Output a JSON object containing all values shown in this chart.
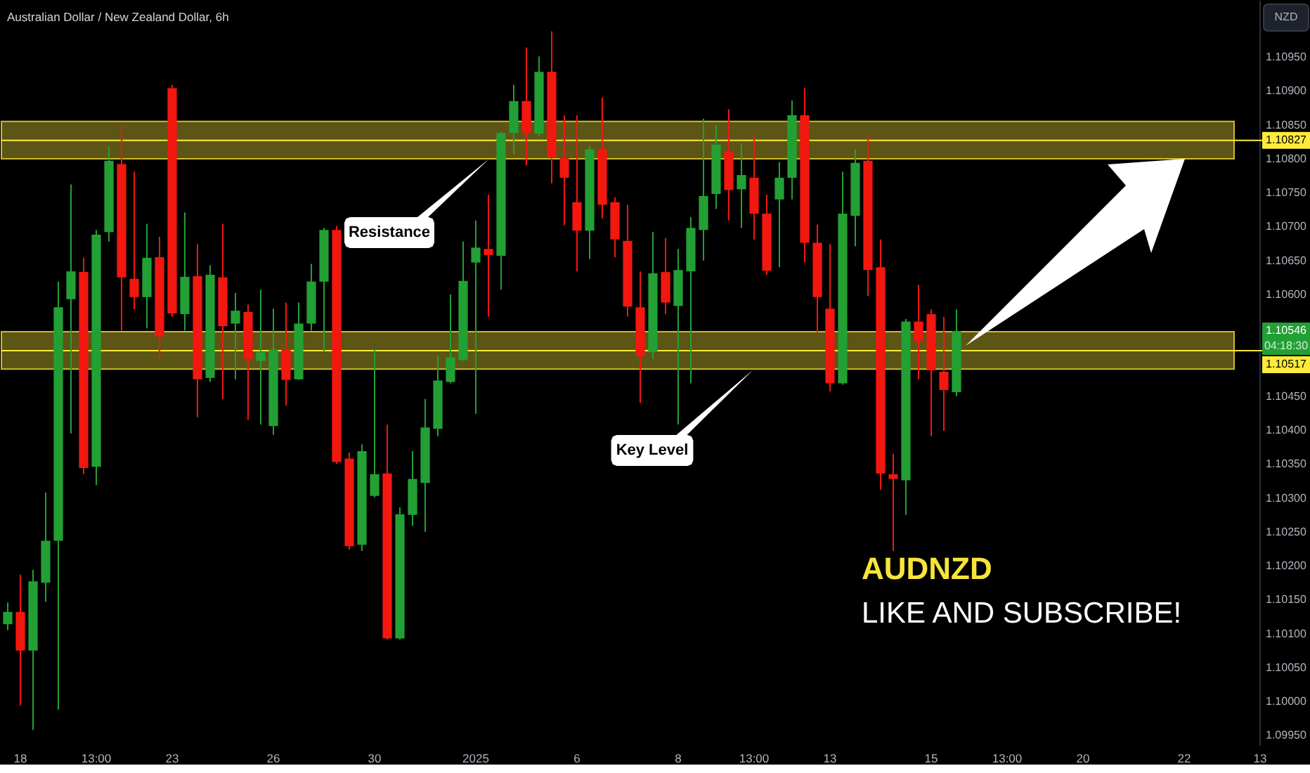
{
  "chart_data": {
    "type": "candlestick",
    "title": "Australian Dollar / New Zealand Dollar, 6h",
    "ylabel": "NZD",
    "categories": [
      null,
      "18",
      null,
      null,
      null,
      null,
      null,
      "13:00",
      null,
      null,
      null,
      null,
      null,
      "23",
      null,
      null,
      null,
      null,
      null,
      null,
      null,
      "26",
      null,
      null,
      null,
      null,
      null,
      null,
      null,
      "30",
      null,
      null,
      null,
      null,
      null,
      null,
      null,
      "2025",
      null,
      null,
      null,
      null,
      null,
      null,
      null,
      "6",
      null,
      null,
      null,
      null,
      null,
      null,
      null,
      "8",
      null,
      null,
      null,
      null,
      null,
      "13:00",
      null,
      null,
      null,
      null,
      null,
      "13",
      null,
      null,
      null,
      null,
      null,
      null,
      null,
      "15",
      null,
      null,
      null,
      null,
      null,
      "13:00",
      null,
      null,
      null,
      null,
      null,
      "20",
      null,
      null,
      null,
      null,
      null,
      null,
      null,
      "22",
      null,
      null,
      null,
      null,
      null,
      "13"
    ],
    "ohlc": [
      [
        1.10114,
        1.10146,
        1.10105,
        1.10132
      ],
      [
        1.10132,
        1.10187,
        1.09994,
        1.10075
      ],
      [
        1.10075,
        1.10194,
        1.09958,
        1.10177
      ],
      [
        1.10175,
        1.10308,
        1.10147,
        1.10237
      ],
      [
        1.10237,
        1.10619,
        1.09988,
        1.10581
      ],
      [
        1.10593,
        1.10762,
        1.10395,
        1.10634
      ],
      [
        1.10633,
        1.10654,
        1.10335,
        1.10344
      ],
      [
        1.10346,
        1.10695,
        1.10319,
        1.10688
      ],
      [
        1.10692,
        1.10818,
        1.10678,
        1.10797
      ],
      [
        1.10792,
        1.1085,
        1.10547,
        1.10625
      ],
      [
        1.10623,
        1.10781,
        1.10578,
        1.10596
      ],
      [
        1.10596,
        1.10704,
        1.1055,
        1.10654
      ],
      [
        1.10655,
        1.10685,
        1.10505,
        1.10538
      ],
      [
        1.10904,
        1.10909,
        1.10567,
        1.10572
      ],
      [
        1.10571,
        1.10721,
        1.10547,
        1.10626
      ],
      [
        1.10627,
        1.10674,
        1.10419,
        1.10475
      ],
      [
        1.10477,
        1.10643,
        1.10471,
        1.10629
      ],
      [
        1.10625,
        1.10704,
        1.10446,
        1.10553
      ],
      [
        1.10557,
        1.10602,
        1.10475,
        1.10576
      ],
      [
        1.10574,
        1.10585,
        1.10415,
        1.10505
      ],
      [
        1.10502,
        1.10607,
        1.10408,
        1.10515
      ],
      [
        1.10406,
        1.10579,
        1.10393,
        1.10519
      ],
      [
        1.10519,
        1.10588,
        1.10436,
        1.10474
      ],
      [
        1.10475,
        1.10588,
        1.10474,
        1.10557
      ],
      [
        1.10557,
        1.10645,
        1.10547,
        1.10619
      ],
      [
        1.10619,
        1.10698,
        1.10515,
        1.10695
      ],
      [
        1.10695,
        1.10701,
        1.1035,
        1.10353
      ],
      [
        1.10358,
        1.10367,
        1.10224,
        1.10229
      ],
      [
        1.10231,
        1.10379,
        1.10222,
        1.10369
      ],
      [
        1.10303,
        1.10519,
        1.10301,
        1.10335
      ],
      [
        1.10336,
        1.10408,
        1.10091,
        1.10093
      ],
      [
        1.10093,
        1.10286,
        1.10091,
        1.10276
      ],
      [
        1.10275,
        1.10369,
        1.10259,
        1.10328
      ],
      [
        1.10322,
        1.10446,
        1.1025,
        1.10404
      ],
      [
        1.10402,
        1.1051,
        1.10391,
        1.10473
      ],
      [
        1.10471,
        1.106,
        1.10469,
        1.10507
      ],
      [
        1.10503,
        1.10678,
        1.10502,
        1.1062
      ],
      [
        1.10647,
        1.10709,
        1.10424,
        1.10669
      ],
      [
        1.10667,
        1.10747,
        1.10567,
        1.10658
      ],
      [
        1.10657,
        1.1084,
        1.10607,
        1.10838
      ],
      [
        1.10838,
        1.10909,
        1.10806,
        1.10885
      ],
      [
        1.10885,
        1.10964,
        1.1079,
        1.10838
      ],
      [
        1.10837,
        1.10951,
        1.10833,
        1.10928
      ],
      [
        1.10928,
        1.10988,
        1.10764,
        1.10802
      ],
      [
        1.10801,
        1.10864,
        1.10702,
        1.10772
      ],
      [
        1.10736,
        1.10864,
        1.10634,
        1.10694
      ],
      [
        1.10694,
        1.10819,
        1.10652,
        1.10814
      ],
      [
        1.10814,
        1.1089,
        1.10712,
        1.10732
      ],
      [
        1.10736,
        1.10743,
        1.10655,
        1.10681
      ],
      [
        1.10679,
        1.10732,
        1.10567,
        1.10582
      ],
      [
        1.10581,
        1.10634,
        1.1044,
        1.10509
      ],
      [
        1.10515,
        1.10692,
        1.10505,
        1.10631
      ],
      [
        1.10633,
        1.10683,
        1.10571,
        1.10588
      ],
      [
        1.10583,
        1.10667,
        1.10408,
        1.10636
      ],
      [
        1.10634,
        1.10714,
        1.10469,
        1.10698
      ],
      [
        1.10695,
        1.10859,
        1.1065,
        1.10745
      ],
      [
        1.10748,
        1.1085,
        1.10726,
        1.10821
      ],
      [
        1.10811,
        1.10873,
        1.10709,
        1.10754
      ],
      [
        1.10755,
        1.10823,
        1.10698,
        1.10776
      ],
      [
        1.10772,
        1.10833,
        1.10681,
        1.10719
      ],
      [
        1.10719,
        1.10747,
        1.10629,
        1.10635
      ],
      [
        1.1074,
        1.10795,
        1.1064,
        1.10772
      ],
      [
        1.10772,
        1.10886,
        1.1074,
        1.10864
      ],
      [
        1.10864,
        1.10904,
        1.10647,
        1.10676
      ],
      [
        1.10676,
        1.10703,
        1.10543,
        1.10596
      ],
      [
        1.10579,
        1.10674,
        1.10457,
        1.10469
      ],
      [
        1.10469,
        1.10781,
        1.10467,
        1.10719
      ],
      [
        1.10716,
        1.10814,
        1.10671,
        1.10794
      ],
      [
        1.10797,
        1.10833,
        1.10598,
        1.10636
      ],
      [
        1.1064,
        1.10681,
        1.10312,
        1.10336
      ],
      [
        1.10335,
        1.10365,
        1.10222,
        1.10328
      ],
      [
        1.10326,
        1.10564,
        1.10275,
        1.1056
      ],
      [
        1.1056,
        1.10614,
        1.10475,
        1.10531
      ],
      [
        1.10571,
        1.10578,
        1.10391,
        1.10488
      ],
      [
        1.10486,
        1.10567,
        1.10399,
        1.10459
      ],
      [
        1.10456,
        1.10578,
        1.1045,
        1.10546
      ],
      null,
      null,
      null,
      null,
      null,
      null,
      null,
      null,
      null,
      null,
      null,
      null,
      null,
      null,
      null,
      null,
      null,
      null,
      null,
      null,
      null,
      null,
      null,
      null
    ],
    "colors": [
      "#22a034",
      "#f2170f",
      "#22a034",
      "#22a034",
      "#22a034",
      "#22a034",
      "#f2170f",
      "#22a034",
      "#22a034",
      "#f2170f",
      "#f2170f",
      "#22a034",
      "#f2170f",
      "#f2170f",
      "#22a034",
      "#f2170f",
      "#22a034",
      "#f2170f",
      "#22a034",
      "#f2170f",
      "#22a034",
      "#22a034",
      "#f2170f",
      "#22a034",
      "#22a034",
      "#22a034",
      "#f2170f",
      "#f2170f",
      "#22a034",
      "#22a034",
      "#f2170f",
      "#22a034",
      "#22a034",
      "#22a034",
      "#22a034",
      "#22a034",
      "#22a034",
      "#22a034",
      "#f2170f",
      "#22a034",
      "#22a034",
      "#f2170f",
      "#22a034",
      "#f2170f",
      "#f2170f",
      "#f2170f",
      "#22a034",
      "#f2170f",
      "#f2170f",
      "#f2170f",
      "#f2170f",
      "#22a034",
      "#f2170f",
      "#22a034",
      "#22a034",
      "#22a034",
      "#22a034",
      "#f2170f",
      "#22a034",
      "#f2170f",
      "#f2170f",
      "#22a034",
      "#22a034",
      "#f2170f",
      "#f2170f",
      "#f2170f",
      "#22a034",
      "#22a034",
      "#f2170f",
      "#f2170f",
      "#f2170f",
      "#22a034",
      "#f2170f",
      "#f2170f",
      "#f2170f",
      "#22a034",
      null,
      null,
      null,
      null,
      null,
      null,
      null,
      null,
      null,
      null,
      null,
      null,
      null,
      null,
      null,
      null,
      null,
      null,
      null,
      null,
      null,
      null,
      null,
      null
    ],
    "ylim": [
      1.09936,
      1.11034
    ],
    "yticks": [
      {
        "value": 1.0995,
        "label": "1.09950"
      },
      {
        "value": 1.1,
        "label": "1.10000"
      },
      {
        "value": 1.1005,
        "label": "1.10050"
      },
      {
        "value": 1.101,
        "label": "1.10100"
      },
      {
        "value": 1.1015,
        "label": "1.10150"
      },
      {
        "value": 1.102,
        "label": "1.10200"
      },
      {
        "value": 1.1025,
        "label": "1.10250"
      },
      {
        "value": 1.103,
        "label": "1.10300"
      },
      {
        "value": 1.1035,
        "label": "1.10350"
      },
      {
        "value": 1.104,
        "label": "1.10400"
      },
      {
        "value": 1.1045,
        "label": "1.10450"
      },
      {
        "value": 1.106,
        "label": "1.10600"
      },
      {
        "value": 1.1065,
        "label": "1.10650"
      },
      {
        "value": 1.107,
        "label": "1.10700"
      },
      {
        "value": 1.1075,
        "label": "1.10750"
      },
      {
        "value": 1.108,
        "label": "1.10800"
      },
      {
        "value": 1.1085,
        "label": "1.10850"
      },
      {
        "value": 1.109,
        "label": "1.10900"
      },
      {
        "value": 1.1095,
        "label": "1.10950"
      }
    ],
    "bands": [
      {
        "axis": "y",
        "from": 1.108,
        "to": 1.10855,
        "color": "#ffeb3b"
      },
      {
        "axis": "y",
        "from": 1.1049,
        "to": 1.10545,
        "color": "#ffeb3b"
      }
    ],
    "ref_lines": [
      {
        "axis": "y",
        "value": 1.10827,
        "label": "1.10827",
        "color": "#ffeb3b"
      },
      {
        "axis": "y",
        "value": 1.10517,
        "label": "1.10517",
        "color": "#ffeb3b"
      }
    ],
    "annotations": [
      "Resistance",
      "Key Level",
      "AUDNZD",
      "LIKE AND SUBSCRIBE!",
      "1.10546",
      "04:18:30"
    ]
  }
}
